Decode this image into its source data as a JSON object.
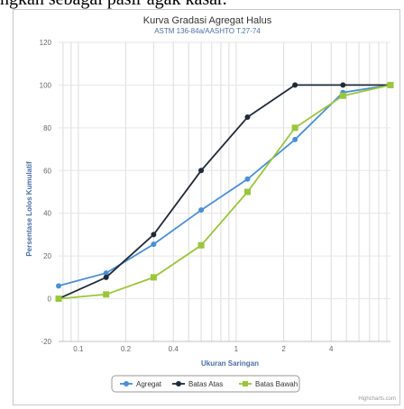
{
  "caption": {
    "text": "ngkan sebagai pasir agak kasar."
  },
  "chart_data": {
    "type": "line",
    "title": "Kurva Gradasi Agregat Halus",
    "subtitle": "ASTM 136-84a/AASHTO T.27-74",
    "xlabel": "Ukuran Saringan",
    "ylabel": "Persentase Lolos Kumulatif",
    "x_scale": "log",
    "xlim": [
      0.075,
      9.5
    ],
    "ylim": [
      -20,
      120
    ],
    "yticks": [
      -20,
      0,
      20,
      40,
      60,
      80,
      100,
      120
    ],
    "xticks": [
      0.1,
      0.2,
      0.4,
      1,
      2,
      4
    ],
    "xtick_labels": [
      "0.1",
      "0.2",
      "0.4",
      "1",
      "2",
      "4"
    ],
    "grid": true,
    "legend_position": "bottom",
    "series": [
      {
        "name": "Agregat",
        "color": "#4a8fd4",
        "marker": "circle",
        "x": [
          0.075,
          0.15,
          0.3,
          0.6,
          1.18,
          2.36,
          4.75,
          9.5
        ],
        "y": [
          6,
          12,
          25.5,
          41.5,
          56,
          74.5,
          96.5,
          100
        ]
      },
      {
        "name": "Batas Atas",
        "color": "#1f2a36",
        "marker": "circle",
        "x": [
          0.075,
          0.15,
          0.3,
          0.6,
          1.18,
          2.36,
          4.75,
          9.5
        ],
        "y": [
          0,
          10,
          30,
          60,
          85,
          100,
          100,
          100
        ]
      },
      {
        "name": "Batas Bawah",
        "color": "#9bc53d",
        "marker": "square",
        "x": [
          0.075,
          0.15,
          0.3,
          0.6,
          1.18,
          2.36,
          4.75,
          9.5
        ],
        "y": [
          0,
          2,
          10,
          25,
          50,
          80,
          95,
          100
        ]
      }
    ]
  },
  "credit": "Highcharts.com"
}
